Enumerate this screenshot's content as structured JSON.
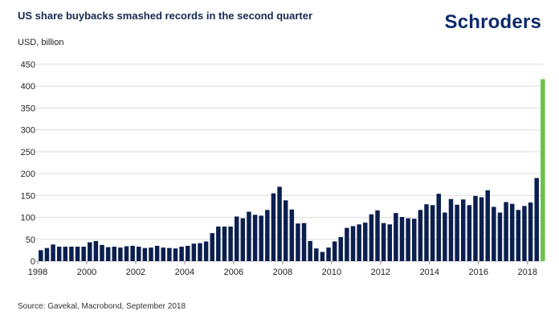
{
  "header": {
    "title": "US share buybacks smashed records in the second quarter",
    "brand": "Schroders"
  },
  "footer": {
    "source": "Source: Gavekal, Macrobond, September 2018"
  },
  "chart_data": {
    "type": "bar",
    "title": "US share buybacks smashed records in the second quarter",
    "ylabel": "USD, billion",
    "xlabel": "",
    "ylim": [
      0,
      450
    ],
    "yticks": [
      0,
      50,
      100,
      150,
      200,
      250,
      300,
      350,
      400,
      450
    ],
    "xticks": [
      "1998",
      "2000",
      "2002",
      "2004",
      "2006",
      "2008",
      "2010",
      "2012",
      "2014",
      "2016",
      "2018"
    ],
    "x_start_year": 1998,
    "x_end_year": 2018.5,
    "grid": true,
    "colors": {
      "bar": "#0b1f4f",
      "highlight": "#6cc24a",
      "grid": "#dcdcdc"
    },
    "highlight_last": true,
    "values": [
      25,
      30,
      38,
      33,
      33,
      33,
      33,
      33,
      43,
      46,
      37,
      32,
      33,
      31,
      34,
      35,
      33,
      30,
      31,
      35,
      31,
      30,
      29,
      33,
      35,
      40,
      41,
      45,
      64,
      79,
      79,
      79,
      102,
      98,
      113,
      106,
      104,
      117,
      155,
      170,
      139,
      118,
      86,
      87,
      46,
      29,
      21,
      31,
      45,
      55,
      76,
      80,
      84,
      88,
      107,
      116,
      87,
      84,
      110,
      101,
      98,
      97,
      117,
      130,
      128,
      154,
      111,
      142,
      129,
      141,
      128,
      149,
      146,
      162,
      124,
      111,
      135,
      131,
      117,
      126,
      134,
      190,
      416
    ]
  }
}
